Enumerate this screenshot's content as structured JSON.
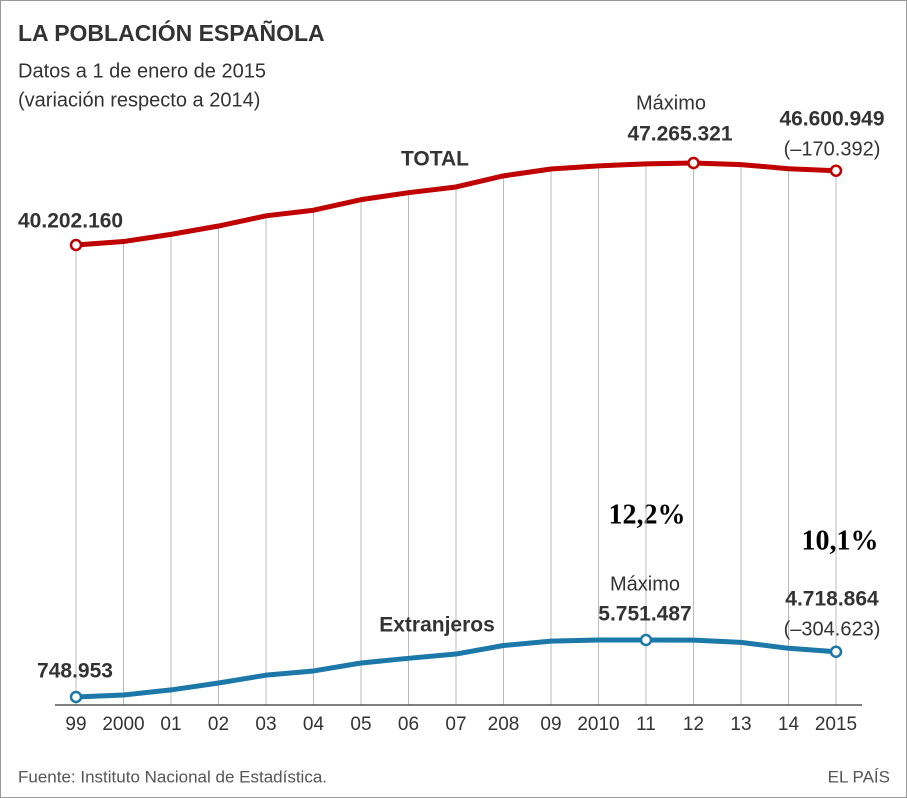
{
  "chart_data": {
    "type": "line",
    "title": "LA POBLACIÓN ESPAÑOLA",
    "subtitle": [
      "Datos a 1 de enero de 2015",
      "(variación respecto a 2014)"
    ],
    "categories": [
      "99",
      "2000",
      "01",
      "02",
      "03",
      "04",
      "05",
      "06",
      "07",
      "208",
      "09",
      "2010",
      "11",
      "12",
      "13",
      "14",
      "2015"
    ],
    "series": [
      {
        "name": "TOTAL",
        "color": "#c00000",
        "values": [
          40202160,
          40499791,
          41116842,
          41837894,
          42717064,
          43197684,
          44108530,
          44708964,
          45200737,
          46157822,
          46745807,
          47021031,
          47190493,
          47265321,
          47129783,
          46771341,
          46600949
        ],
        "value_labels": [
          "40.202.160",
          null,
          null,
          null,
          null,
          null,
          null,
          null,
          null,
          null,
          null,
          null,
          null,
          "47.265.321",
          null,
          null,
          "46.600.949"
        ],
        "change": -170392,
        "change_label": "(–170.392)",
        "max_label": "Máximo"
      },
      {
        "name": "Extranjeros",
        "color": "#1b78a8",
        "values": [
          748953,
          923879,
          1370657,
          1977946,
          2664168,
          3034326,
          3730610,
          4144166,
          4519554,
          5268762,
          5648671,
          5747734,
          5751487,
          5736258,
          5546238,
          5023487,
          4718864
        ],
        "value_labels": [
          "748.953",
          null,
          null,
          null,
          null,
          null,
          null,
          null,
          null,
          null,
          null,
          null,
          "5.751.487",
          null,
          null,
          null,
          "4.718.864"
        ],
        "change": -304623,
        "change_label": "(–304.623)",
        "max_label": "Máximo"
      }
    ],
    "annotations": [
      "12,2%",
      "10,1%"
    ],
    "source": "Fuente: Instituto Nacional de Estadística.",
    "credit": "EL PAÍS"
  }
}
